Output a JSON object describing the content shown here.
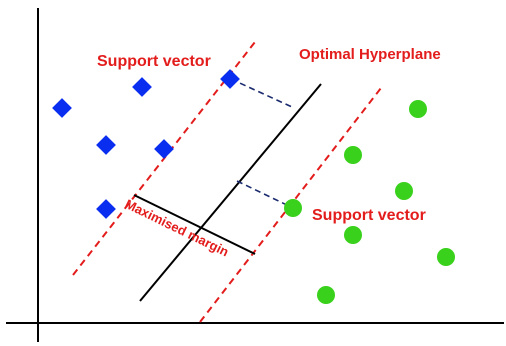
{
  "labels": {
    "support_vector_top": "Support vector",
    "optimal_hyperplane": "Optimal Hyperplane",
    "support_vector_bottom": "Support vector",
    "margin": "Maximised margin"
  },
  "colors": {
    "class_a": "#0a2ef0",
    "class_b": "#39d11b",
    "label_red": "#e31c1c",
    "boundary": "#e31c1c",
    "hyperplane": "#000000",
    "connector": "#1a2a6e"
  },
  "icons": {
    "class_a_marker": "blue-diamond",
    "class_b_marker": "green-circle"
  }
}
